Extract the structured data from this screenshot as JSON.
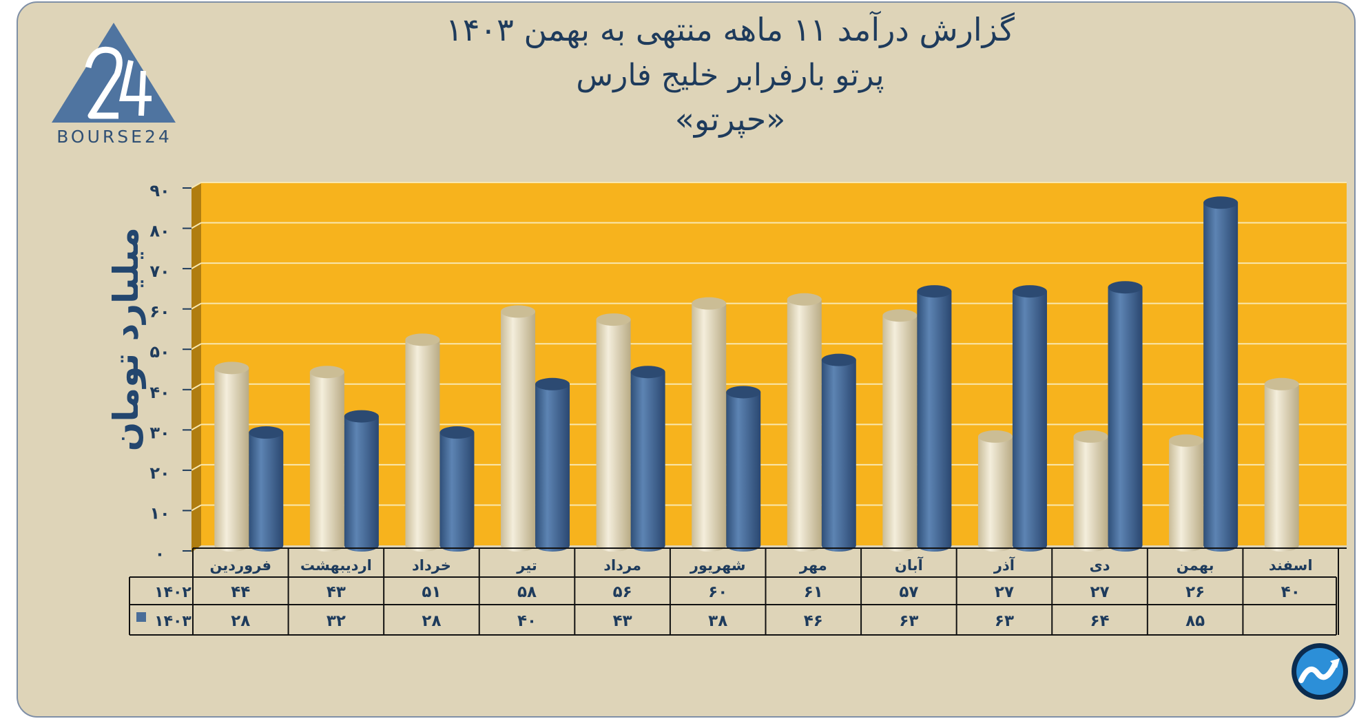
{
  "title_lines": [
    "گزارش  درآمد ۱۱ ماهه منتهی به بهمن ۱۴۰۳",
    "پرتو بارفرابر خلیج فارس",
    "«حپرتو»"
  ],
  "logo_text": "BOURSE24",
  "colors": {
    "background": "#ded4b8",
    "plot_area": "#f7b31d",
    "series_1402": "#e6dcc0",
    "series_1403": "#4a6d98",
    "text": "#1e3b5c"
  },
  "chart_data": {
    "type": "bar",
    "ylabel": "میلیارد تومان",
    "ylim": [
      0,
      90
    ],
    "y_ticks": [
      "۰",
      "۱۰",
      "۲۰",
      "۳۰",
      "۴۰",
      "۵۰",
      "۶۰",
      "۷۰",
      "۸۰",
      "۹۰"
    ],
    "categories": [
      "فروردین",
      "اردیبهشت",
      "خرداد",
      "تیر",
      "مرداد",
      "شهریور",
      "مهر",
      "آبان",
      "آذر",
      "دی",
      "بهمن",
      "اسفند"
    ],
    "series": [
      {
        "name": "۱۴۰۲",
        "values": [
          44,
          43,
          51,
          58,
          56,
          60,
          61,
          57,
          27,
          27,
          26,
          40
        ],
        "labels": [
          "۴۴",
          "۴۳",
          "۵۱",
          "۵۸",
          "۵۶",
          "۶۰",
          "۶۱",
          "۵۷",
          "۲۷",
          "۲۷",
          "۲۶",
          "۴۰"
        ]
      },
      {
        "name": "۱۴۰۳",
        "values": [
          28,
          32,
          28,
          40,
          43,
          38,
          46,
          63,
          63,
          64,
          85,
          null
        ],
        "labels": [
          "۲۸",
          "۳۲",
          "۲۸",
          "۴۰",
          "۴۳",
          "۳۸",
          "۴۶",
          "۶۳",
          "۶۳",
          "۶۴",
          "۸۵",
          ""
        ]
      }
    ],
    "grid": true,
    "legend": "data-table"
  }
}
